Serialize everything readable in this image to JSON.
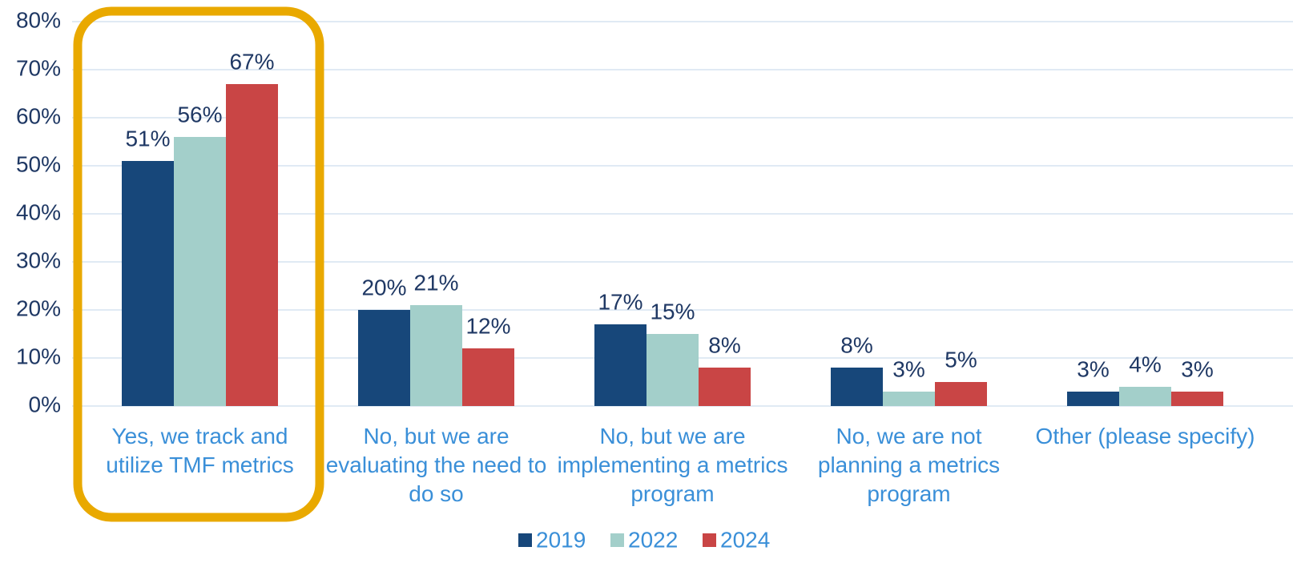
{
  "chart_data": {
    "type": "bar",
    "categories": [
      "Yes, we track and utilize TMF metrics",
      "No, but we are evaluating the need to do so",
      "No, but we are implementing a metrics program",
      "No, we are not planning a metrics program",
      "Other (please specify)"
    ],
    "series": [
      {
        "name": "2019",
        "color": "#17477a",
        "values": [
          51,
          20,
          17,
          8,
          3
        ],
        "value_labels": [
          "51%",
          "20%",
          "17%",
          "8%",
          "3%"
        ]
      },
      {
        "name": "2022",
        "color": "#a3cfca",
        "values": [
          56,
          21,
          15,
          3,
          4
        ],
        "value_labels": [
          "56%",
          "21%",
          "15%",
          "3%",
          "4%"
        ]
      },
      {
        "name": "2024",
        "color": "#c94545",
        "values": [
          67,
          12,
          8,
          5,
          3
        ],
        "value_labels": [
          "67%",
          "12%",
          "8%",
          "5%",
          "3%"
        ]
      }
    ],
    "ylim": [
      0,
      80
    ],
    "yticks": [
      {
        "value": 0,
        "label": "0%"
      },
      {
        "value": 10,
        "label": "10%"
      },
      {
        "value": 20,
        "label": "20%"
      },
      {
        "value": 30,
        "label": "30%"
      },
      {
        "value": 40,
        "label": "40%"
      },
      {
        "value": 50,
        "label": "50%"
      },
      {
        "value": 60,
        "label": "60%"
      },
      {
        "value": 70,
        "label": "70%"
      },
      {
        "value": 80,
        "label": "80%"
      }
    ],
    "grid": true,
    "legend": "bottom"
  }
}
